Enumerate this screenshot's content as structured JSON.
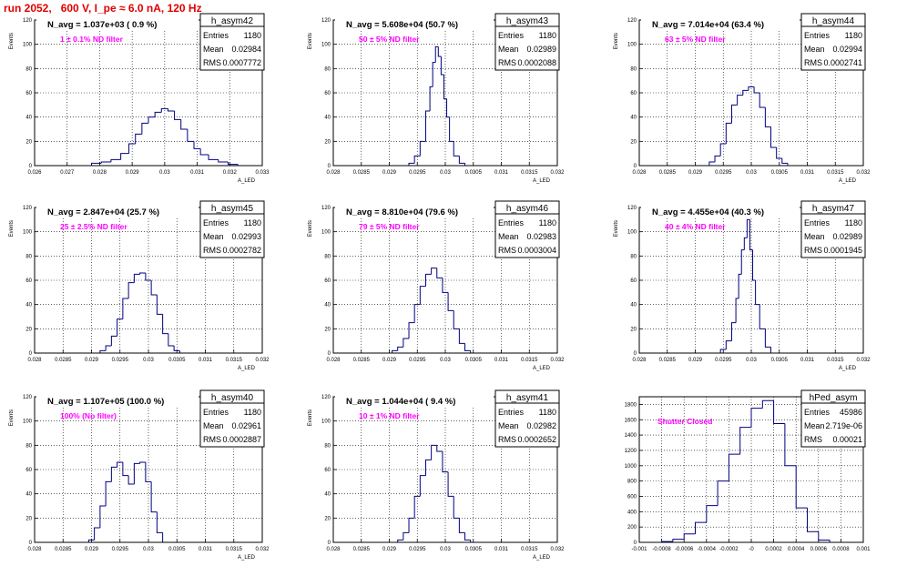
{
  "header": "run 2052,   600 V, I_pe ≈ 6.0 nA, 120 Hz",
  "colors": {
    "hist": "#000080",
    "annotation": "#ff00ff",
    "header": "#e00000",
    "grid": "#000000"
  },
  "stat_labels": {
    "entries": "Entries",
    "mean": "Mean",
    "rms": "RMS"
  },
  "chart_data": [
    {
      "type": "histogram",
      "name": "h_asym42",
      "title": "N_avg = 1.037e+03 ( 0.9 %)",
      "note": "1 ± 0.1% ND filter",
      "entries": "1180",
      "mean": "0.02984",
      "rms": "0.0007772",
      "xlabel": "A_LED",
      "ylabel": "Events",
      "grid": true,
      "xlim": [
        0.026,
        0.033
      ],
      "ylim": [
        0,
        120
      ],
      "xticks": [
        0.026,
        0.027,
        0.028,
        0.029,
        0.03,
        0.031,
        0.032,
        0.033
      ],
      "xticklabels": [
        "0.026",
        "0.027",
        "0.028",
        "0.029",
        "0.03",
        "0.031",
        "0.032",
        "0.033"
      ],
      "yticks": [
        0,
        20,
        40,
        60,
        80,
        100,
        120
      ],
      "yticklabels": [
        "0",
        "20",
        "40",
        "60",
        "80",
        "100",
        "120"
      ],
      "bins": [
        0.0279,
        0.0282,
        0.0285,
        0.0288,
        0.029,
        0.0292,
        0.0294,
        0.0296,
        0.0298,
        0.03,
        0.0302,
        0.0304,
        0.0306,
        0.0308,
        0.031,
        0.0312,
        0.0315,
        0.0318,
        0.0321
      ],
      "values": [
        2,
        3,
        5,
        10,
        18,
        26,
        35,
        40,
        44,
        47,
        45,
        38,
        30,
        20,
        14,
        9,
        5,
        3,
        1
      ]
    },
    {
      "type": "histogram",
      "name": "h_asym43",
      "title": "N_avg = 5.608e+04 (50.7 %)",
      "note": "50 ± 5% ND filter",
      "entries": "1180",
      "mean": "0.02989",
      "rms": "0.0002088",
      "xlabel": "A_LED",
      "ylabel": "Events",
      "grid": true,
      "xlim": [
        0.028,
        0.032
      ],
      "ylim": [
        0,
        120
      ],
      "xticks": [
        0.028,
        0.0285,
        0.029,
        0.0295,
        0.03,
        0.0305,
        0.031,
        0.0315,
        0.032
      ],
      "xticklabels": [
        "0.028",
        "0.0285",
        "0.029",
        "0.0295",
        "0.03",
        "0.0305",
        "0.031",
        "0.0315",
        "0.032"
      ],
      "yticks": [
        0,
        20,
        40,
        60,
        80,
        100,
        120
      ],
      "yticklabels": [
        "0",
        "20",
        "40",
        "60",
        "80",
        "100",
        "120"
      ],
      "bins": [
        0.0294,
        0.0295,
        0.0296,
        0.0297,
        0.02975,
        0.0298,
        0.02985,
        0.0299,
        0.02995,
        0.03,
        0.03005,
        0.0301,
        0.0302,
        0.0303
      ],
      "values": [
        2,
        8,
        20,
        45,
        65,
        85,
        98,
        90,
        75,
        55,
        40,
        20,
        8,
        2
      ]
    },
    {
      "type": "histogram",
      "name": "h_asym44",
      "title": "N_avg = 7.014e+04 (63.4 %)",
      "note": "63 ± 5% ND filter",
      "entries": "1180",
      "mean": "0.02994",
      "rms": "0.0002741",
      "xlabel": "A_LED",
      "ylabel": "Events",
      "grid": true,
      "xlim": [
        0.028,
        0.032
      ],
      "ylim": [
        0,
        120
      ],
      "xticks": [
        0.028,
        0.0285,
        0.029,
        0.0295,
        0.03,
        0.0305,
        0.031,
        0.0315,
        0.032
      ],
      "xticklabels": [
        "0.028",
        "0.0285",
        "0.029",
        "0.0295",
        "0.03",
        "0.0305",
        "0.031",
        "0.0315",
        "0.032"
      ],
      "yticks": [
        0,
        20,
        40,
        60,
        80,
        100,
        120
      ],
      "yticklabels": [
        "0",
        "20",
        "40",
        "60",
        "80",
        "100",
        "120"
      ],
      "bins": [
        0.0293,
        0.0294,
        0.0295,
        0.0296,
        0.0297,
        0.0298,
        0.0299,
        0.03,
        0.0301,
        0.0302,
        0.0303,
        0.0304,
        0.0305,
        0.0306
      ],
      "values": [
        3,
        8,
        18,
        35,
        50,
        58,
        62,
        65,
        60,
        48,
        32,
        15,
        6,
        2
      ]
    },
    {
      "type": "histogram",
      "name": "h_asym45",
      "title": "N_avg = 2.847e+04 (25.7 %)",
      "note": "25 ± 2.5% ND filter",
      "entries": "1180",
      "mean": "0.02993",
      "rms": "0.0002782",
      "xlabel": "A_LED",
      "ylabel": "Events",
      "grid": true,
      "xlim": [
        0.028,
        0.032
      ],
      "ylim": [
        0,
        120
      ],
      "xticks": [
        0.028,
        0.0285,
        0.029,
        0.0295,
        0.03,
        0.0305,
        0.031,
        0.0315,
        0.032
      ],
      "xticklabels": [
        "0.028",
        "0.0285",
        "0.029",
        "0.0295",
        "0.03",
        "0.0305",
        "0.031",
        "0.0315",
        "0.032"
      ],
      "yticks": [
        0,
        20,
        40,
        60,
        80,
        100,
        120
      ],
      "yticklabels": [
        "0",
        "20",
        "40",
        "60",
        "80",
        "100",
        "120"
      ],
      "bins": [
        0.0292,
        0.0293,
        0.0294,
        0.0295,
        0.0296,
        0.0297,
        0.0298,
        0.0299,
        0.03,
        0.0301,
        0.0302,
        0.0303,
        0.0304,
        0.0305
      ],
      "values": [
        2,
        6,
        14,
        28,
        45,
        58,
        65,
        66,
        60,
        48,
        32,
        16,
        6,
        2
      ]
    },
    {
      "type": "histogram",
      "name": "h_asym46",
      "title": "N_avg = 8.810e+04 (79.6 %)",
      "note": "79 ± 5% ND filter",
      "entries": "1180",
      "mean": "0.02983",
      "rms": "0.0003004",
      "xlabel": "A_LED",
      "ylabel": "Events",
      "grid": true,
      "xlim": [
        0.028,
        0.032
      ],
      "ylim": [
        0,
        120
      ],
      "xticks": [
        0.028,
        0.0285,
        0.029,
        0.0295,
        0.03,
        0.0305,
        0.031,
        0.0315,
        0.032
      ],
      "xticklabels": [
        "0.028",
        "0.0285",
        "0.029",
        "0.0295",
        "0.03",
        "0.0305",
        "0.031",
        "0.0315",
        "0.032"
      ],
      "yticks": [
        0,
        20,
        40,
        60,
        80,
        100,
        120
      ],
      "yticklabels": [
        "0",
        "20",
        "40",
        "60",
        "80",
        "100",
        "120"
      ],
      "bins": [
        0.0291,
        0.0292,
        0.0293,
        0.0294,
        0.0295,
        0.0296,
        0.0297,
        0.0298,
        0.0299,
        0.03,
        0.0301,
        0.0302,
        0.0303,
        0.0304
      ],
      "values": [
        2,
        5,
        12,
        25,
        40,
        55,
        65,
        70,
        62,
        50,
        35,
        20,
        8,
        2
      ]
    },
    {
      "type": "histogram",
      "name": "h_asym47",
      "title": "N_avg = 4.455e+04 (40.3 %)",
      "note": "40 ± 4% ND filter",
      "entries": "1180",
      "mean": "0.02989",
      "rms": "0.0001945",
      "xlabel": "A_LED",
      "ylabel": "Events",
      "grid": true,
      "xlim": [
        0.028,
        0.032
      ],
      "ylim": [
        0,
        120
      ],
      "xticks": [
        0.028,
        0.0285,
        0.029,
        0.0295,
        0.03,
        0.0305,
        0.031,
        0.0315,
        0.032
      ],
      "xticklabels": [
        "0.028",
        "0.0285",
        "0.029",
        "0.0295",
        "0.03",
        "0.0305",
        "0.031",
        "0.0315",
        "0.032"
      ],
      "yticks": [
        0,
        20,
        40,
        60,
        80,
        100,
        120
      ],
      "yticklabels": [
        "0",
        "20",
        "40",
        "60",
        "80",
        "100",
        "120"
      ],
      "bins": [
        0.0295,
        0.0296,
        0.0297,
        0.02975,
        0.0298,
        0.02985,
        0.0299,
        0.02995,
        0.03,
        0.03005,
        0.0301,
        0.0302,
        0.0303
      ],
      "values": [
        3,
        10,
        25,
        45,
        65,
        85,
        95,
        110,
        85,
        60,
        40,
        20,
        5
      ]
    },
    {
      "type": "histogram",
      "name": "h_asym40",
      "title": "N_avg = 1.107e+05 (100.0 %)",
      "note": "100% (No filter)",
      "entries": "1180",
      "mean": "0.02961",
      "rms": "0.0002887",
      "xlabel": "A_LED",
      "ylabel": "Events",
      "grid": true,
      "xlim": [
        0.028,
        0.032
      ],
      "ylim": [
        0,
        120
      ],
      "xticks": [
        0.028,
        0.0285,
        0.029,
        0.0295,
        0.03,
        0.0305,
        0.031,
        0.0315,
        0.032
      ],
      "xticklabels": [
        "0.028",
        "0.0285",
        "0.029",
        "0.0295",
        "0.03",
        "0.0305",
        "0.031",
        "0.0315",
        "0.032"
      ],
      "yticks": [
        0,
        20,
        40,
        60,
        80,
        100,
        120
      ],
      "yticklabels": [
        "0",
        "20",
        "40",
        "60",
        "80",
        "100",
        "120"
      ],
      "bins": [
        0.029,
        0.0291,
        0.0292,
        0.0293,
        0.0294,
        0.0295,
        0.0296,
        0.0297,
        0.0298,
        0.0299,
        0.03,
        0.0301,
        0.0302
      ],
      "values": [
        2,
        12,
        30,
        50,
        62,
        66,
        55,
        48,
        65,
        66,
        50,
        25,
        8
      ]
    },
    {
      "type": "histogram",
      "name": "h_asym41",
      "title": "N_avg = 1.044e+04 ( 9.4 %)",
      "note": "10 ± 1% ND filter",
      "entries": "1180",
      "mean": "0.02982",
      "rms": "0.0002652",
      "xlabel": "A_LED",
      "ylabel": "Events",
      "grid": true,
      "xlim": [
        0.028,
        0.032
      ],
      "ylim": [
        0,
        120
      ],
      "xticks": [
        0.028,
        0.0285,
        0.029,
        0.0295,
        0.03,
        0.0305,
        0.031,
        0.0315,
        0.032
      ],
      "xticklabels": [
        "0.028",
        "0.0285",
        "0.029",
        "0.0295",
        "0.03",
        "0.0305",
        "0.031",
        "0.0315",
        "0.032"
      ],
      "yticks": [
        0,
        20,
        40,
        60,
        80,
        100,
        120
      ],
      "yticklabels": [
        "0",
        "20",
        "40",
        "60",
        "80",
        "100",
        "120"
      ],
      "bins": [
        0.0292,
        0.0293,
        0.0294,
        0.0295,
        0.0296,
        0.0297,
        0.0298,
        0.0299,
        0.03,
        0.0301,
        0.0302,
        0.0303,
        0.0304
      ],
      "values": [
        2,
        8,
        20,
        38,
        55,
        68,
        80,
        75,
        58,
        38,
        20,
        8,
        2
      ]
    },
    {
      "type": "histogram",
      "name": "hPed_asym",
      "title": "",
      "note": "Shutter Closed",
      "entries": "45986",
      "mean": "2.719e-06",
      "rms": "0.00021",
      "xlabel": "",
      "ylabel": "",
      "grid": true,
      "xlim": [
        -0.001,
        0.001
      ],
      "ylim": [
        0,
        1900
      ],
      "xticks": [
        -0.001,
        -0.0008,
        -0.0006,
        -0.0004,
        -0.0002,
        0,
        0.0002,
        0.0004,
        0.0006,
        0.0008,
        0.001
      ],
      "xticklabels": [
        "-0.001",
        "-0.0008",
        "-0.0006",
        "-0.0004",
        "-0.0002",
        "-0",
        "0.0002",
        "0.0004",
        "0.0006",
        "0.0008",
        "0.001"
      ],
      "yticks": [
        0,
        200,
        400,
        600,
        800,
        1000,
        1200,
        1400,
        1600,
        1800
      ],
      "yticklabels": [
        "0",
        "200",
        "400",
        "600",
        "800",
        "1000",
        "1200",
        "1400",
        "1600",
        "1800"
      ],
      "bins": [
        -0.00075,
        -0.00065,
        -0.00055,
        -0.00045,
        -0.00035,
        -0.00025,
        -0.00015,
        -5e-05,
        5e-05,
        0.00015,
        0.00025,
        0.00035,
        0.00045,
        0.00055,
        0.00065
      ],
      "values": [
        10,
        40,
        110,
        260,
        480,
        800,
        1150,
        1500,
        1750,
        1850,
        1550,
        1000,
        450,
        140,
        30
      ]
    }
  ]
}
